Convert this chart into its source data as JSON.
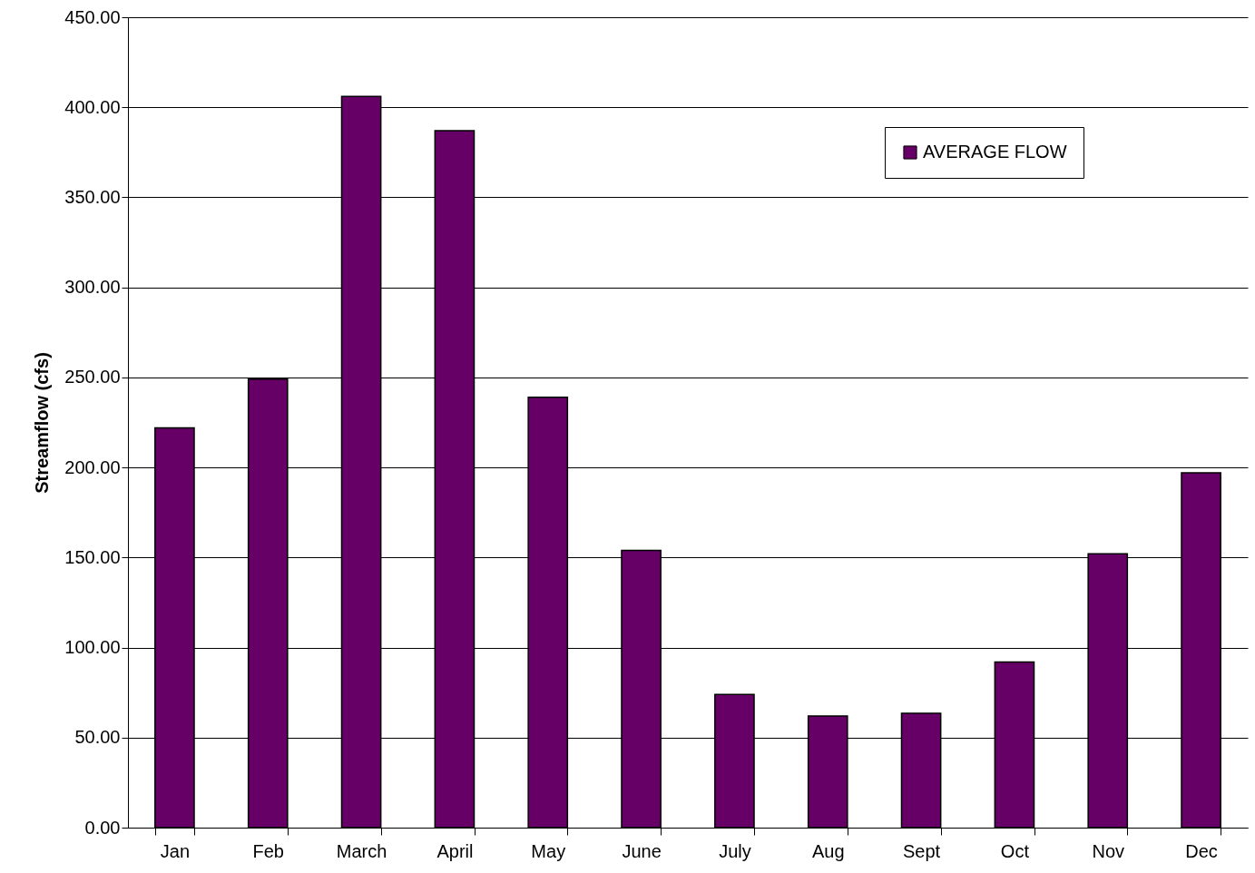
{
  "chart_data": {
    "type": "bar",
    "ylabel": "Streamflow (cfs)",
    "categories": [
      "Jan",
      "Feb",
      "March",
      "April",
      "May",
      "June",
      "July",
      "Aug",
      "Sept",
      "Oct",
      "Nov",
      "Dec"
    ],
    "series": [
      {
        "name": "AVERAGE FLOW",
        "color": "#660066",
        "values": [
          222,
          249,
          406,
          387,
          239,
          154,
          74,
          62,
          63.5,
          92,
          152,
          197
        ]
      }
    ],
    "ylim": [
      0,
      450
    ],
    "yticks": [
      {
        "value": 0,
        "label": "0.00"
      },
      {
        "value": 50,
        "label": "50.00"
      },
      {
        "value": 100,
        "label": "100.00"
      },
      {
        "value": 150,
        "label": "150.00"
      },
      {
        "value": 200,
        "label": "200.00"
      },
      {
        "value": 250,
        "label": "250.00"
      },
      {
        "value": 300,
        "label": "300.00"
      },
      {
        "value": 350,
        "label": "350.00"
      },
      {
        "value": 400,
        "label": "400.00"
      },
      {
        "value": 450,
        "label": "450.00"
      }
    ],
    "grid": "y",
    "legend": "top right"
  }
}
